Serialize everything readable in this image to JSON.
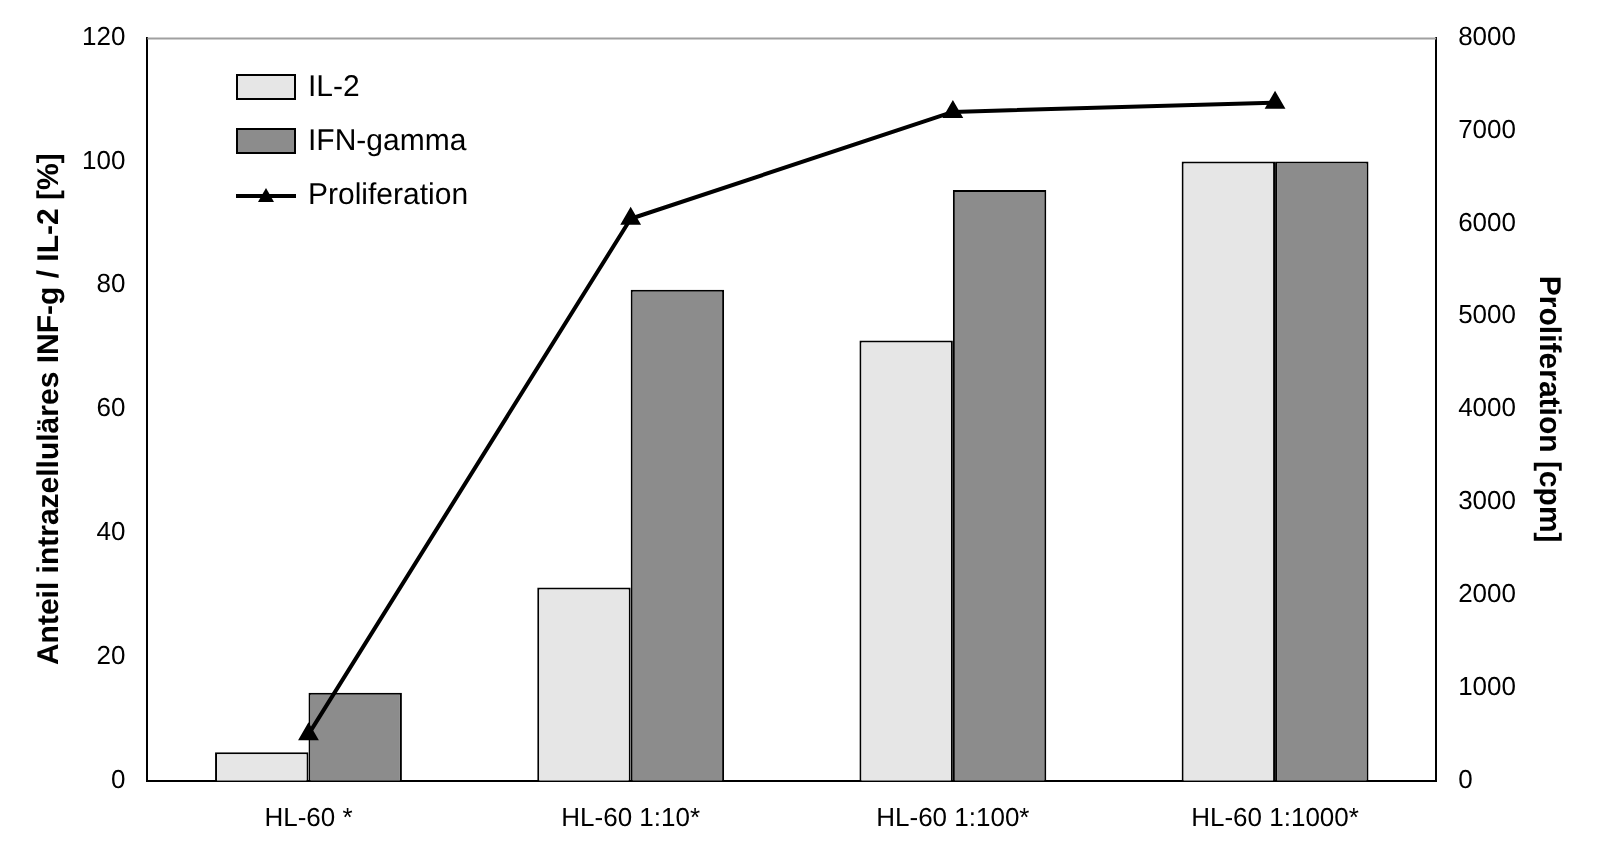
{
  "chart_data": {
    "type": "bar",
    "ylabel": "Anteil intrazelluläres INF-g / IL-2 [%]",
    "y2label": "Proliferation [cpm]",
    "categories": [
      "HL-60 *",
      "HL-60 1:10*",
      "HL-60 1:100*",
      "HL-60 1:1000*"
    ],
    "series": [
      {
        "name": "IL-2",
        "color": "#e6e6e6",
        "values": [
          4.6,
          31.2,
          71.1,
          100
        ]
      },
      {
        "name": "IFN-gamma",
        "color": "#8c8c8c",
        "values": [
          14.2,
          79.3,
          95.4,
          100
        ]
      },
      {
        "name": "Proliferation",
        "type": "line",
        "axis": "y2",
        "color": "#000000",
        "marker": "triangle",
        "values": [
          500,
          6050,
          7200,
          7300
        ]
      }
    ],
    "ylim": [
      0,
      120
    ],
    "yticks": [
      0,
      20,
      40,
      60,
      80,
      100,
      120
    ],
    "y2lim": [
      0,
      8000
    ],
    "y2ticks": [
      0,
      1000,
      2000,
      3000,
      4000,
      5000,
      6000,
      7000,
      8000
    ],
    "legend": "top left",
    "grid": false
  }
}
